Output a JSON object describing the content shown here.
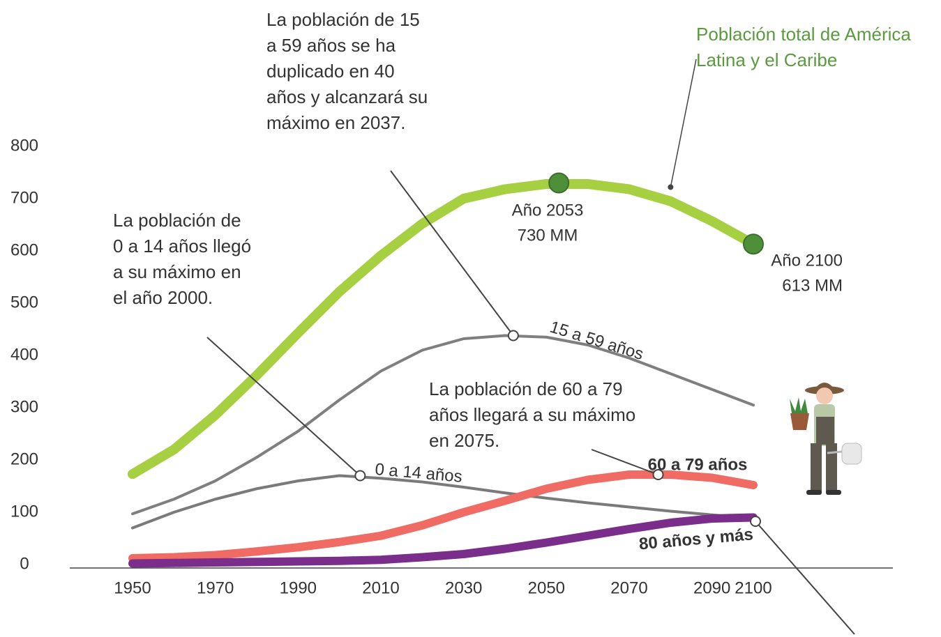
{
  "chart_data": {
    "type": "line",
    "x": [
      1950,
      1960,
      1970,
      1980,
      1990,
      2000,
      2010,
      2020,
      2030,
      2040,
      2050,
      2060,
      2070,
      2080,
      2090,
      2100
    ],
    "xlim": [
      1950,
      2100
    ],
    "xticks": [
      1950,
      1970,
      1990,
      2010,
      2030,
      2050,
      2070,
      2090,
      2100
    ],
    "ylim": [
      0,
      800
    ],
    "yticks": [
      0,
      100,
      200,
      300,
      400,
      500,
      600,
      700,
      800
    ],
    "series": [
      {
        "name": "Población total de América Latina y el Caribe",
        "color": "#a6cf42",
        "values": [
          173,
          220,
          286,
          362,
          443,
          522,
          591,
          652,
          700,
          718,
          728,
          728,
          718,
          695,
          657,
          613
        ]
      },
      {
        "name": "15 a 59 años",
        "color": "#7f7f7f",
        "values": [
          97,
          125,
          160,
          205,
          255,
          315,
          370,
          410,
          432,
          438,
          435,
          420,
          395,
          365,
          335,
          305
        ]
      },
      {
        "name": "0 a 14 años",
        "color": "#7a7a7a",
        "values": [
          70,
          100,
          125,
          145,
          160,
          170,
          165,
          158,
          148,
          137,
          127,
          118,
          110,
          102,
          95,
          88
        ]
      },
      {
        "name": "60 a 79 años",
        "color": "#ef6b63",
        "values": [
          12,
          14,
          18,
          25,
          33,
          43,
          55,
          75,
          100,
          122,
          145,
          162,
          172,
          172,
          166,
          152
        ]
      },
      {
        "name": "80 años y más",
        "color": "#7b2d8b",
        "values": [
          2,
          3,
          4,
          5,
          6,
          7,
          9,
          14,
          20,
          30,
          42,
          55,
          68,
          80,
          88,
          90
        ]
      }
    ],
    "highlights": [
      {
        "x": 2053,
        "value": 730,
        "label": "Año 2053",
        "value_label": "730 MM"
      },
      {
        "x": 2100,
        "value": 613,
        "label": "Año 2100",
        "value_label": "613 MM"
      }
    ],
    "annotations": [
      {
        "text": "La población de 0 a 14 años llegó a su máximo en el año 2000.",
        "x": 2005,
        "y": 170
      },
      {
        "text": "La población de 15 a 59 años se ha duplicado en 40 años y alcanzará su máximo en 2037.",
        "x": 2042,
        "y": 438
      },
      {
        "text": "La población de 60 a 79 años llegará a su máximo en 2075.",
        "x": 2077,
        "y": 172
      }
    ]
  }
}
